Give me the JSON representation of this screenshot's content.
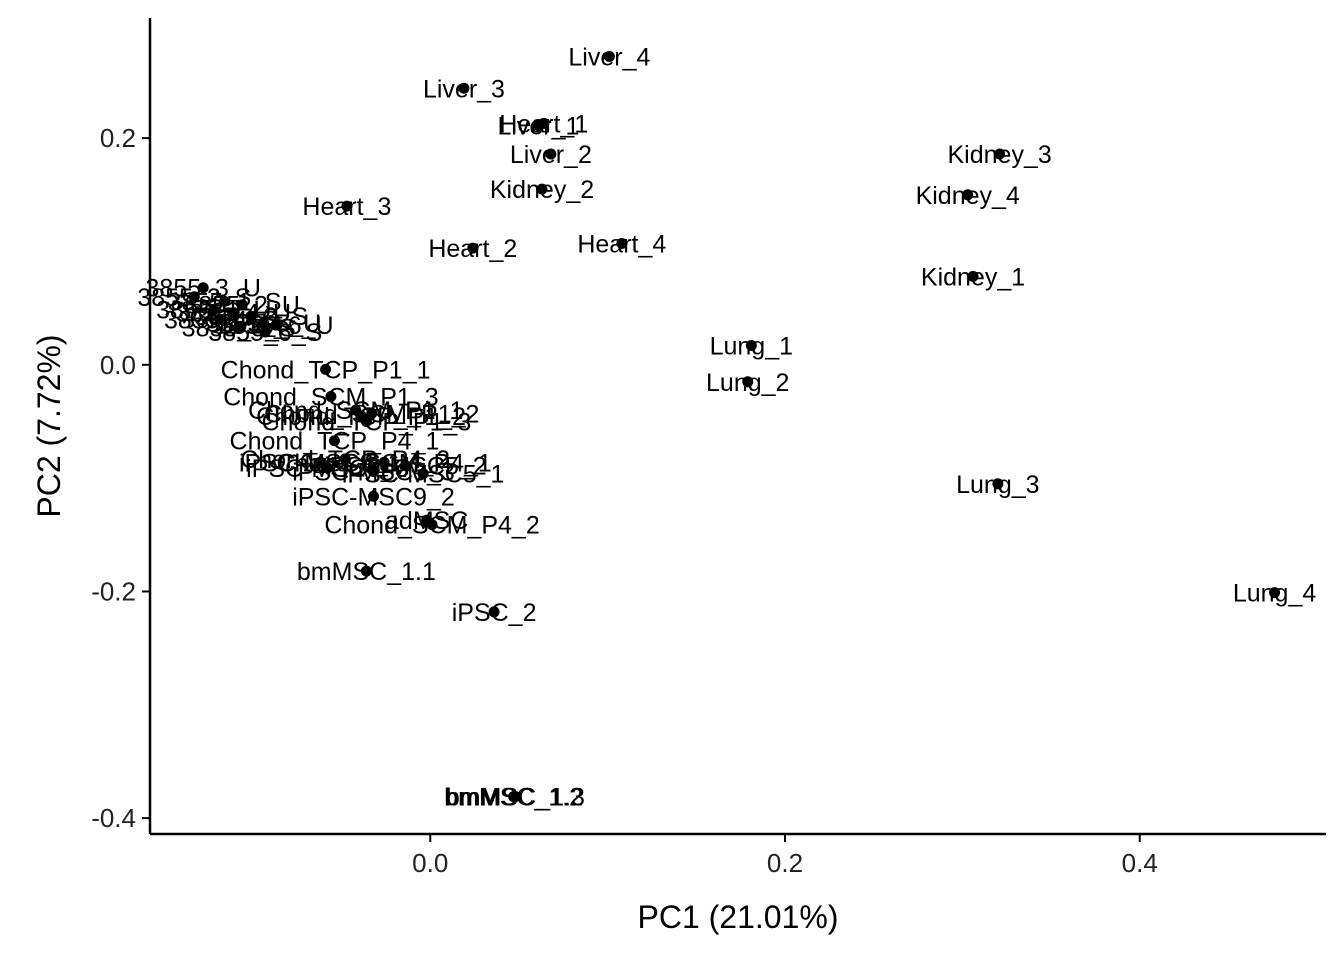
{
  "chart_data": {
    "type": "scatter",
    "title": "",
    "xlabel": "PC1 (21.01%)",
    "ylabel": "PC2 (7.72%)",
    "xlim": [
      -0.158,
      0.505
    ],
    "ylim": [
      -0.414,
      0.306
    ],
    "x_ticks": [
      0.0,
      0.2,
      0.4
    ],
    "x_tick_labels": [
      "0.0",
      "0.2",
      "0.4"
    ],
    "y_ticks": [
      -0.4,
      -0.2,
      0.0,
      0.2
    ],
    "y_tick_labels": [
      "-0.4",
      "-0.2",
      "0.0",
      "0.2"
    ],
    "grid": false,
    "legend": "none",
    "point_color": "#000000",
    "points": [
      {
        "label": "Liver_4",
        "x": 0.101,
        "y": 0.272
      },
      {
        "label": "Liver_3",
        "x": 0.019,
        "y": 0.244
      },
      {
        "label": "Heart_1",
        "x": 0.064,
        "y": 0.213
      },
      {
        "label": "Liver_1",
        "x": 0.061,
        "y": 0.211
      },
      {
        "label": "Liver_2",
        "x": 0.068,
        "y": 0.186
      },
      {
        "label": "Kidney_2",
        "x": 0.063,
        "y": 0.155
      },
      {
        "label": "Heart_3",
        "x": -0.047,
        "y": 0.14
      },
      {
        "label": "Heart_2",
        "x": 0.024,
        "y": 0.103
      },
      {
        "label": "Heart_4",
        "x": 0.108,
        "y": 0.107
      },
      {
        "label": "Kidney_3",
        "x": 0.321,
        "y": 0.186
      },
      {
        "label": "Kidney_4",
        "x": 0.303,
        "y": 0.15
      },
      {
        "label": "Kidney_1",
        "x": 0.306,
        "y": 0.078
      },
      {
        "label": "Lung_1",
        "x": 0.181,
        "y": 0.017
      },
      {
        "label": "Lung_2",
        "x": 0.179,
        "y": -0.015
      },
      {
        "label": "Lung_3",
        "x": 0.32,
        "y": -0.105
      },
      {
        "label": "Lung_4",
        "x": 0.476,
        "y": -0.201
      },
      {
        "label": "3855_3_U",
        "x": -0.128,
        "y": 0.068
      },
      {
        "label": "3855_2_S",
        "x": -0.133,
        "y": 0.06
      },
      {
        "label": "3855_1_S",
        "x": -0.116,
        "y": 0.056
      },
      {
        "label": "3855_2_U",
        "x": -0.106,
        "y": 0.053
      },
      {
        "label": "3855_1_U",
        "x": -0.122,
        "y": 0.049
      },
      {
        "label": "3855_4_U",
        "x": -0.111,
        "y": 0.046
      },
      {
        "label": "3855_3_S",
        "x": -0.101,
        "y": 0.043
      },
      {
        "label": "3855_4_S",
        "x": -0.118,
        "y": 0.04
      },
      {
        "label": "3855_5_U",
        "x": -0.094,
        "y": 0.037
      },
      {
        "label": "3855_5_S",
        "x": -0.108,
        "y": 0.033
      },
      {
        "label": "3855_6_U",
        "x": -0.087,
        "y": 0.035
      },
      {
        "label": "3855_6_S",
        "x": -0.093,
        "y": 0.029
      },
      {
        "label": "Chond_TCP_P1_1",
        "x": -0.059,
        "y": -0.004
      },
      {
        "label": "Chond_SCM_P1_3",
        "x": -0.056,
        "y": -0.028
      },
      {
        "label": "Chond_SCM_P1_1",
        "x": -0.042,
        "y": -0.04
      },
      {
        "label": "Chond_TCP_P1_2",
        "x": -0.039,
        "y": -0.045
      },
      {
        "label": "Chond_SCM_P1_2",
        "x": -0.033,
        "y": -0.043
      },
      {
        "label": "Chond_TCP_P1_3",
        "x": -0.036,
        "y": -0.05
      },
      {
        "label": "Chond_TCP_P4_1",
        "x": -0.054,
        "y": -0.067
      },
      {
        "label": "iPSC-MSC9_1",
        "x": -0.062,
        "y": -0.086
      },
      {
        "label": "Chond_TCP_P4_2",
        "x": -0.048,
        "y": -0.083
      },
      {
        "label": "Chond_SCM_P4_1",
        "x": -0.026,
        "y": -0.086
      },
      {
        "label": "iPSC-MSC9_3",
        "x": -0.058,
        "y": -0.091
      },
      {
        "label": "iPSC-MSC5_2",
        "x": -0.014,
        "y": -0.089
      },
      {
        "label": "iPSC-MSC5_3",
        "x": -0.032,
        "y": -0.094
      },
      {
        "label": "iPSC-MSC5_1",
        "x": -0.004,
        "y": -0.096
      },
      {
        "label": "iPSC-MSC9_2",
        "x": -0.032,
        "y": -0.116
      },
      {
        "label": "adMSC",
        "x": -0.002,
        "y": -0.137
      },
      {
        "label": "Chond_SCM_P4_2",
        "x": 0.001,
        "y": -0.141
      },
      {
        "label": "bmMSC_1.1",
        "x": -0.036,
        "y": -0.182
      },
      {
        "label": "iPSC_2",
        "x": 0.036,
        "y": -0.218
      },
      {
        "label": "bmMSC_1.2",
        "x": 0.047,
        "y": -0.381
      },
      {
        "label": "bmMSC_1.3",
        "x": 0.048,
        "y": -0.381
      }
    ]
  }
}
